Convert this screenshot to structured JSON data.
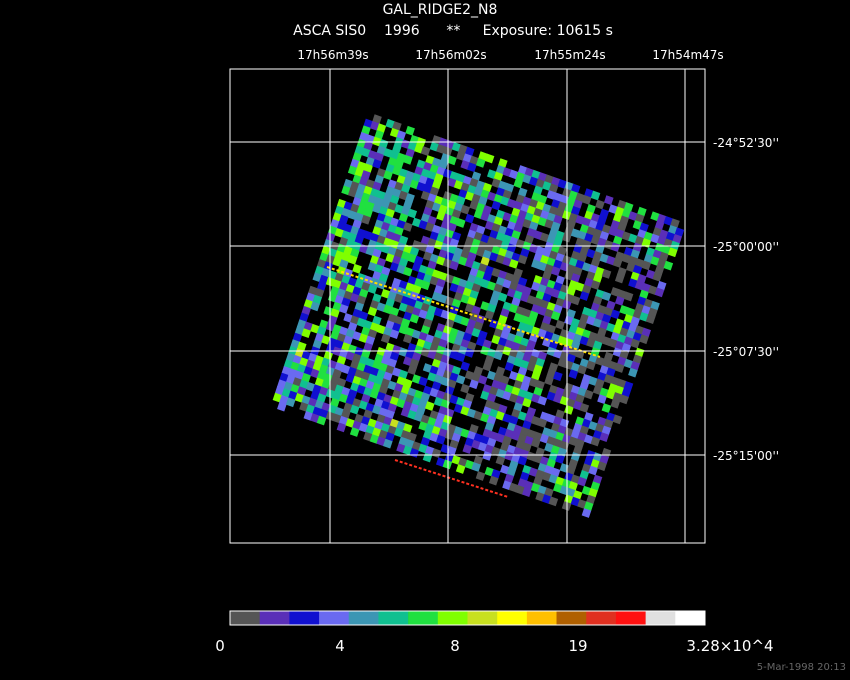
{
  "header": {
    "title": "GAL_RIDGE2_N8",
    "subtitle": "ASCA SIS0    1996      **     Exposure: 10615 s"
  },
  "ra_labels": [
    "17h56m39s",
    "17h56m02s",
    "17h55m24s",
    "17h54m47s"
  ],
  "dec_labels": [
    "-24°52'30''",
    "-25°00'00''",
    "-25°07'30''",
    "-25°15'00''"
  ],
  "colorbar": {
    "colors": [
      "#555555",
      "#5a2fb8",
      "#1010d0",
      "#6a6af0",
      "#3c96b4",
      "#10c090",
      "#20e040",
      "#80ff00",
      "#c8e020",
      "#ffff00",
      "#ffc000",
      "#b06000",
      "#e03020",
      "#ff1010",
      "#e0e0e0",
      "#ffffff"
    ],
    "labels": [
      "0",
      "4",
      "8",
      "19",
      "3.28×10^4"
    ]
  },
  "footer": "5-Mar-1998 20:13"
}
